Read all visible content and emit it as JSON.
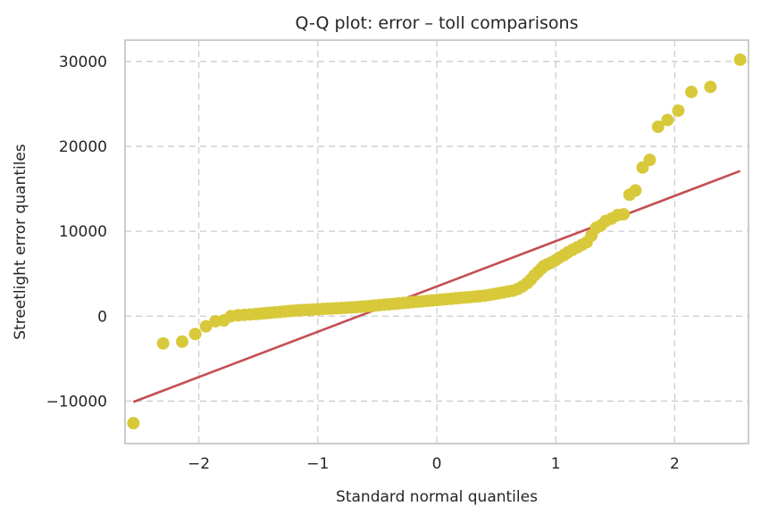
{
  "chart_data": {
    "type": "scatter",
    "title": "Q-Q plot: error – toll comparisons",
    "xlabel": "Standard normal quantiles",
    "ylabel": "Streetlight error quantiles",
    "xlim": [
      -2.62,
      2.62
    ],
    "ylim": [
      -15000,
      32500
    ],
    "xticks": [
      -2,
      -1,
      0,
      1,
      2
    ],
    "xtick_labels": [
      "−2",
      "−1",
      "0",
      "1",
      "2"
    ],
    "yticks": [
      -10000,
      0,
      10000,
      20000,
      30000
    ],
    "ytick_labels": [
      "−10000",
      "0",
      "10000",
      "20000",
      "30000"
    ],
    "grid": true,
    "colors": {
      "points": "#d8c93b",
      "fit_line": "#c44e52",
      "grid": "#cccccc",
      "frame": "#cccccc"
    },
    "series": [
      {
        "type": "scatter",
        "x": [
          -2.55,
          -2.3,
          -2.14,
          -2.03,
          -1.94,
          -1.86,
          -1.79,
          -1.73,
          -1.67,
          -1.62,
          -1.57,
          -1.52,
          -1.48,
          -1.44,
          -1.4,
          -1.36,
          -1.32,
          -1.28,
          -1.24,
          -1.2,
          -1.16,
          -1.12,
          -1.08,
          -1.04,
          -1.0,
          -0.96,
          -0.92,
          -0.88,
          -0.84,
          -0.8,
          -0.76,
          -0.72,
          -0.68,
          -0.64,
          -0.6,
          -0.56,
          -0.52,
          -0.48,
          -0.44,
          -0.4,
          -0.36,
          -0.32,
          -0.28,
          -0.24,
          -0.2,
          -0.16,
          -0.12,
          -0.08,
          -0.04,
          0.0,
          0.04,
          0.08,
          0.12,
          0.16,
          0.2,
          0.24,
          0.28,
          0.32,
          0.36,
          0.4,
          0.44,
          0.48,
          0.52,
          0.56,
          0.6,
          0.64,
          0.68,
          0.72,
          0.76,
          0.79,
          0.82,
          0.85,
          0.88,
          0.9,
          0.93,
          0.96,
          1.0,
          1.03,
          1.07,
          1.1,
          1.14,
          1.18,
          1.22,
          1.26,
          1.3,
          1.34,
          1.38,
          1.42,
          1.47,
          1.52,
          1.57,
          1.62,
          1.67,
          1.73,
          1.79,
          1.86,
          1.94,
          2.03,
          2.14,
          2.3,
          2.55
        ],
        "y": [
          -12600,
          -3200,
          -3000,
          -2100,
          -1200,
          -600,
          -500,
          0,
          100,
          150,
          200,
          250,
          300,
          350,
          400,
          450,
          500,
          550,
          600,
          650,
          700,
          720,
          750,
          780,
          800,
          850,
          880,
          900,
          930,
          960,
          1000,
          1030,
          1060,
          1100,
          1150,
          1200,
          1250,
          1300,
          1350,
          1400,
          1450,
          1500,
          1550,
          1600,
          1650,
          1700,
          1750,
          1800,
          1850,
          1900,
          1950,
          2000,
          2050,
          2100,
          2150,
          2200,
          2250,
          2300,
          2350,
          2400,
          2500,
          2600,
          2700,
          2800,
          2900,
          3000,
          3200,
          3500,
          3900,
          4300,
          4800,
          5200,
          5600,
          5900,
          6100,
          6300,
          6600,
          6900,
          7200,
          7500,
          7800,
          8100,
          8400,
          8700,
          9500,
          10400,
          10700,
          11200,
          11500,
          11900,
          12000,
          14300,
          14800,
          17500,
          18400,
          22300,
          23100,
          24200,
          26400,
          27000,
          30200
        ]
      },
      {
        "type": "line",
        "x": [
          -2.55,
          2.55
        ],
        "y": [
          -10100,
          17100
        ]
      }
    ]
  }
}
